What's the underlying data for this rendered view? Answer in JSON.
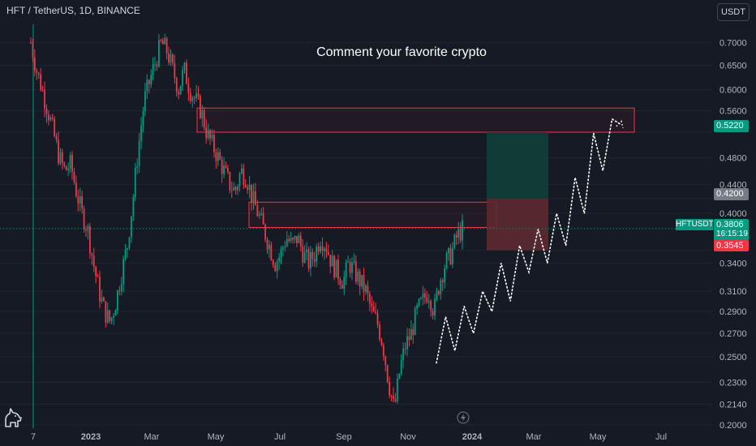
{
  "header": {
    "title": "HFT / TetherUS, 1D, BINANCE"
  },
  "annotation": "Comment your favorite crypto",
  "currency_button": "USDT",
  "ticker_label": "HFTUSDT",
  "price_tags": {
    "target": "0.5220",
    "entry": "0.4200",
    "current": "0.3806",
    "countdown": "16:15:19",
    "stop": "0.3545"
  },
  "colors": {
    "background": "#161a25",
    "up": "#089981",
    "down": "#f23645",
    "grid": "#232632",
    "zone": "#f23645",
    "target_fill": "#0f3f3a",
    "stop_fill": "#5c2a30"
  },
  "chart_data": {
    "type": "candlestick",
    "title": "HFT / TetherUS, 1D, BINANCE",
    "y_scale": "log",
    "ylim": [
      0.2,
      0.75
    ],
    "y_ticks": [
      "0.7000",
      "0.6500",
      "0.6000",
      "0.5600",
      "0.5220",
      "0.4800",
      "0.4400",
      "0.4200",
      "0.4000",
      "0.3806",
      "0.3545",
      "0.3400",
      "0.3100",
      "0.2900",
      "0.2700",
      "0.2500",
      "0.2300",
      "0.2140",
      "0.2000"
    ],
    "x_ticks": [
      "7",
      "2023",
      "Mar",
      "May",
      "Jul",
      "Sep",
      "Nov",
      "2024",
      "Mar",
      "May",
      "Jul"
    ],
    "close_series": [
      0.7,
      0.64,
      0.6,
      0.56,
      0.52,
      0.48,
      0.46,
      0.47,
      0.43,
      0.4,
      0.38,
      0.34,
      0.31,
      0.29,
      0.28,
      0.3,
      0.33,
      0.36,
      0.42,
      0.5,
      0.58,
      0.62,
      0.66,
      0.7,
      0.68,
      0.64,
      0.6,
      0.64,
      0.6,
      0.58,
      0.56,
      0.52,
      0.5,
      0.48,
      0.46,
      0.44,
      0.43,
      0.46,
      0.45,
      0.42,
      0.4,
      0.38,
      0.36,
      0.34,
      0.35,
      0.37,
      0.36,
      0.37,
      0.35,
      0.34,
      0.35,
      0.37,
      0.36,
      0.34,
      0.33,
      0.32,
      0.34,
      0.33,
      0.32,
      0.31,
      0.29,
      0.28,
      0.26,
      0.23,
      0.21,
      0.24,
      0.26,
      0.27,
      0.29,
      0.3,
      0.31,
      0.29,
      0.32,
      0.34,
      0.35,
      0.37,
      0.38
    ],
    "zones": [
      {
        "label": "upper-resistance",
        "from": 0.522,
        "to": 0.565
      },
      {
        "label": "lower-resistance",
        "from": 0.382,
        "to": 0.415
      }
    ],
    "position": {
      "entry": 0.42,
      "target": 0.522,
      "stop": 0.3545
    },
    "projection": [
      0.245,
      0.285,
      0.255,
      0.295,
      0.27,
      0.31,
      0.29,
      0.34,
      0.3,
      0.36,
      0.33,
      0.38,
      0.34,
      0.4,
      0.36,
      0.45,
      0.4,
      0.52,
      0.46,
      0.545,
      0.535
    ],
    "current_price": 0.3806
  }
}
